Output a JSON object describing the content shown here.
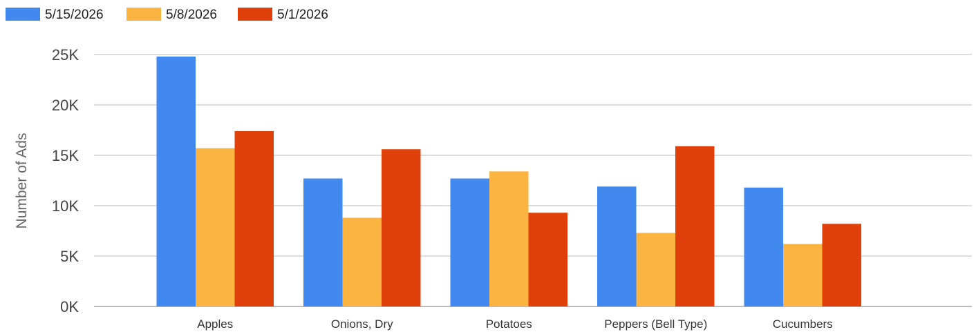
{
  "chart_data": {
    "type": "bar",
    "title": "",
    "xlabel": "",
    "ylabel": "Number of Ads",
    "categories": [
      "Apples",
      "Onions, Dry",
      "Potatoes",
      "Peppers (Bell Type)",
      "Cucumbers"
    ],
    "series": [
      {
        "name": "5/15/2026",
        "color": "#4189EF",
        "values": [
          24800,
          12700,
          12700,
          11900,
          11800
        ]
      },
      {
        "name": "5/8/2026",
        "color": "#FBB341",
        "values": [
          15700,
          8800,
          13400,
          7300,
          6200
        ]
      },
      {
        "name": "5/1/2026",
        "color": "#E0400A",
        "values": [
          17400,
          15600,
          9300,
          15900,
          8200
        ]
      }
    ],
    "ylim": [
      0,
      25000
    ],
    "yticks": [
      0,
      5000,
      10000,
      15000,
      20000,
      25000
    ],
    "ytick_labels": [
      "0K",
      "5K",
      "10K",
      "15K",
      "20K",
      "25K"
    ],
    "grid": true,
    "legend_position": "top-left"
  }
}
